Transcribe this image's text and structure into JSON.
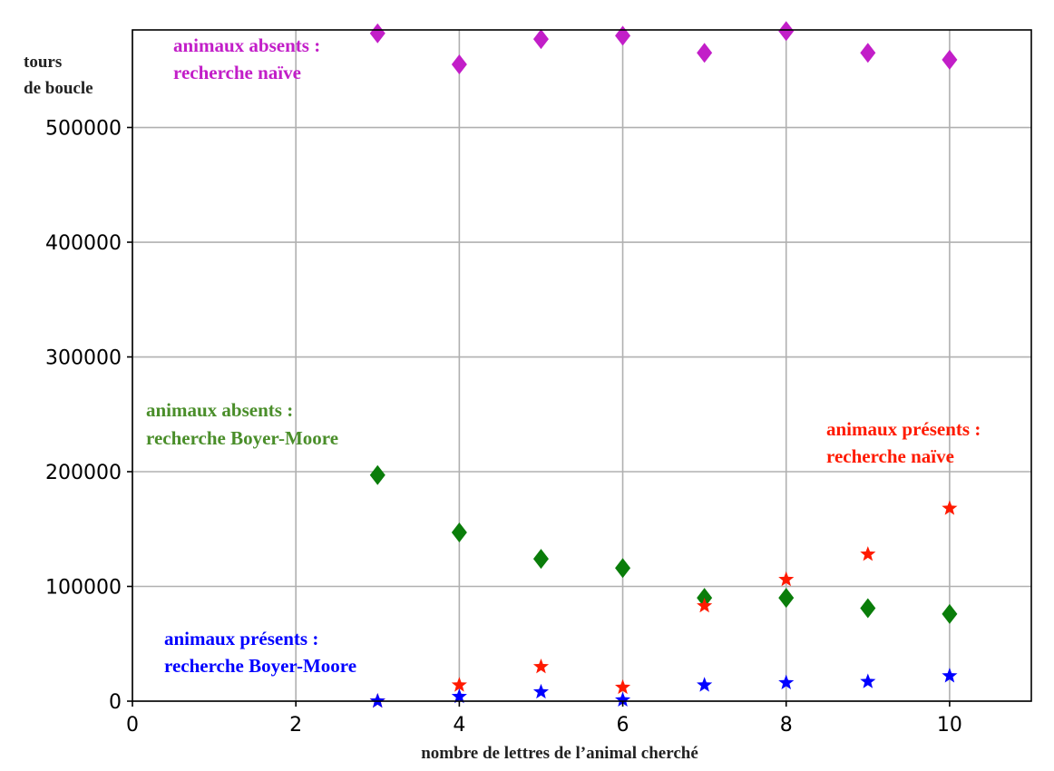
{
  "chart_data": {
    "type": "scatter",
    "title": "",
    "xlabel": "nombre de lettres de l’animal cherché",
    "ylabel": "tours de boucle",
    "ylabel_lines": [
      "tours",
      "de boucle"
    ],
    "xlim": [
      0,
      11
    ],
    "ylim": [
      0,
      585000
    ],
    "xticks": [
      0,
      2,
      4,
      6,
      8,
      10
    ],
    "yticks": [
      0,
      100000,
      200000,
      300000,
      400000,
      500000
    ],
    "grid": true,
    "legend": "none",
    "x": [
      3,
      4,
      5,
      6,
      7,
      8,
      9,
      10
    ],
    "series": [
      {
        "name": "animaux absents : recherche naïve",
        "label_lines": [
          "animaux absents :",
          "recherche naïve"
        ],
        "color": "#c21ec8",
        "marker": "diamond",
        "values": [
          582000,
          555000,
          577000,
          580000,
          565000,
          584000,
          565000,
          559000
        ]
      },
      {
        "name": "animaux absents : recherche Boyer-Moore",
        "label_lines": [
          "animaux absents :",
          "recherche Boyer-Moore"
        ],
        "color": "#0a7d0a",
        "marker": "diamond",
        "values": [
          197000,
          147000,
          124000,
          116000,
          90000,
          90000,
          81000,
          76000
        ]
      },
      {
        "name": "animaux présents : recherche naïve",
        "label_lines": [
          "animaux présents :",
          "recherche naïve"
        ],
        "color": "#ff1a00",
        "marker": "star",
        "values": [
          0,
          14000,
          30000,
          12000,
          83000,
          106000,
          128000,
          168000
        ]
      },
      {
        "name": "animaux présents : recherche Boyer-Moore",
        "label_lines": [
          "animaux présents :",
          "recherche Boyer-Moore"
        ],
        "color": "#0000ff",
        "marker": "star",
        "values": [
          0,
          4000,
          8000,
          1000,
          14000,
          16000,
          17000,
          22000
        ]
      }
    ]
  }
}
